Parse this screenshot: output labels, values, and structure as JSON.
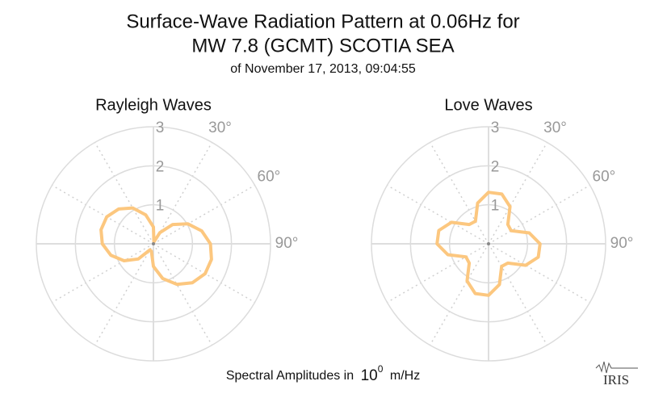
{
  "header": {
    "title": [
      "Surface-Wave Radiation Pattern at 0.06Hz for",
      "MW 7.8 (GCMT) SCOTIA SEA"
    ],
    "subtitle": "of November 17, 2013, 09:04:55"
  },
  "footer": {
    "text": "Spectral Amplitudes in",
    "base": "10",
    "exponent": "0",
    "unit": "m/Hz"
  },
  "logo": "IRIS",
  "chart_data": [
    {
      "type": "polar",
      "title": "Rayleigh Waves",
      "color": "#fcc77f",
      "theta": [
        0,
        15,
        30,
        45,
        60,
        75,
        90,
        105,
        120,
        135,
        150,
        165,
        180,
        195,
        210,
        225,
        240,
        255,
        270,
        285,
        300,
        315,
        330,
        345
      ],
      "r": [
        0.43,
        0.05,
        0.33,
        0.7,
        1.02,
        1.28,
        1.46,
        1.54,
        1.53,
        1.41,
        1.2,
        0.92,
        0.58,
        0.2,
        0.18,
        0.55,
        0.87,
        1.13,
        1.31,
        1.39,
        1.38,
        1.26,
        1.06,
        0.77
      ],
      "rlim": [
        0,
        3
      ],
      "rticks": [
        1,
        2,
        3
      ],
      "thetaticks": [
        {
          "value": 30,
          "label": "30°"
        },
        {
          "value": 60,
          "label": "60°"
        },
        {
          "value": 90,
          "label": "90°"
        }
      ]
    },
    {
      "type": "polar",
      "title": "Love Waves",
      "color": "#fcc77f",
      "theta": [
        0,
        15,
        30,
        45,
        60,
        75,
        90,
        105,
        120,
        135,
        150,
        165,
        180,
        195,
        210,
        225,
        240,
        255,
        270,
        285,
        300,
        315,
        330,
        345
      ],
      "r": [
        1.32,
        1.32,
        1.1,
        0.7,
        0.67,
        1.08,
        1.32,
        1.32,
        1.1,
        0.7,
        0.67,
        1.08,
        1.32,
        1.32,
        1.1,
        0.7,
        0.67,
        1.08,
        1.32,
        1.32,
        1.1,
        0.7,
        0.67,
        1.08
      ],
      "rlim": [
        0,
        3
      ],
      "rticks": [
        1,
        2,
        3
      ],
      "thetaticks": [
        {
          "value": 30,
          "label": "30°"
        },
        {
          "value": 60,
          "label": "60°"
        },
        {
          "value": 90,
          "label": "90°"
        }
      ]
    }
  ]
}
